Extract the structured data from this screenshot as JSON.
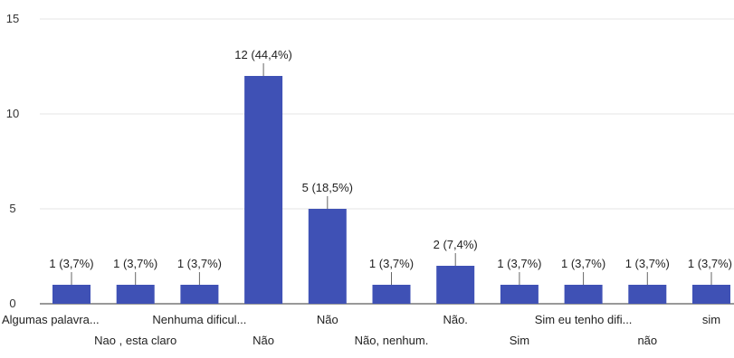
{
  "chart_data": {
    "type": "bar",
    "title": "",
    "xlabel": "",
    "ylabel": "",
    "ylim": [
      0,
      15
    ],
    "yticks": [
      0,
      5,
      10,
      15
    ],
    "grid": true,
    "bar_color": "#3f51b5",
    "categories": [
      "Algumas palavra...",
      "Nao , esta claro",
      "Nenhuma dificul...",
      "Não",
      "Não",
      "Não, nenhum.",
      "Não.",
      "Sim",
      "Sim eu tenho difi...",
      "não",
      "sim"
    ],
    "values": [
      1,
      1,
      1,
      12,
      5,
      1,
      2,
      1,
      1,
      1,
      1
    ],
    "data_labels": [
      "1 (3,7%)",
      "1 (3,7%)",
      "1 (3,7%)",
      "12 (44,4%)",
      "5 (18,5%)",
      "1 (3,7%)",
      "2 (7,4%)",
      "1 (3,7%)",
      "1 (3,7%)",
      "1 (3,7%)",
      "1 (3,7%)"
    ]
  }
}
